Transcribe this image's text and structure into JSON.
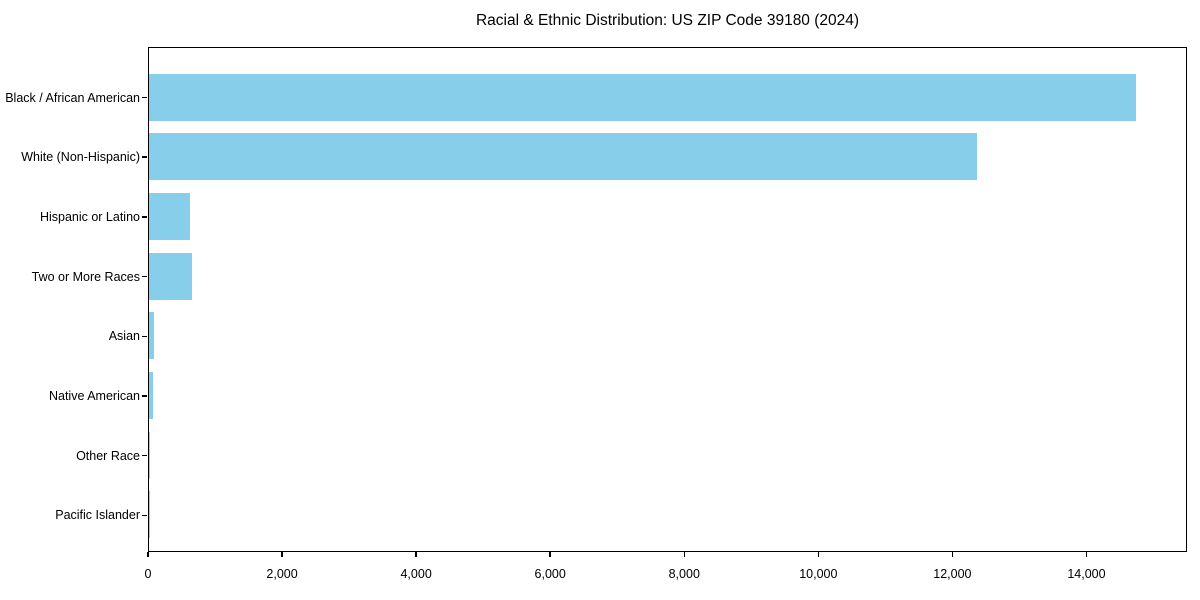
{
  "page": {
    "background_color": "#ffffff",
    "text_color": "#000000"
  },
  "chart_data": {
    "type": "bar",
    "orientation": "horizontal",
    "title": "Racial & Ethnic Distribution: US ZIP Code 39180 (2024)",
    "categories": [
      "Black / African American",
      "White (Non-Hispanic)",
      "Hispanic or Latino",
      "Two or More Races",
      "Asian",
      "Native American",
      "Other Race",
      "Pacific Islander"
    ],
    "values": [
      14750,
      12380,
      620,
      640,
      70,
      60,
      10,
      5
    ],
    "xlabel": "",
    "ylabel": "",
    "xlim": [
      0,
      15500
    ],
    "x_ticks": [
      0,
      2000,
      4000,
      6000,
      8000,
      10000,
      12000,
      14000
    ],
    "x_tick_labels": [
      "0",
      "2,000",
      "4,000",
      "6,000",
      "8,000",
      "10,000",
      "12,000",
      "14,000"
    ],
    "bar_color": "#87CEEB",
    "axis_color": "#000000",
    "grid": false,
    "legend": null,
    "largest_category_first": true
  }
}
